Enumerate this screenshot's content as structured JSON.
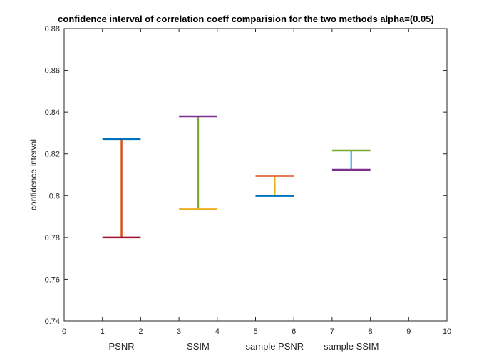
{
  "chart_data": {
    "type": "errorbar",
    "title": "confidence interval of correlation coeff comparision  for the two methods alpha=(0.05)",
    "xlabel": "",
    "ylabel": "confidence interval",
    "xlim": [
      0,
      10
    ],
    "ylim": [
      0.74,
      0.88
    ],
    "xticks": [
      "0",
      "1",
      "2",
      "3",
      "4",
      "5",
      "6",
      "7",
      "8",
      "9",
      "10"
    ],
    "yticks": [
      "0.74",
      "0.76",
      "0.78",
      "0.8",
      "0.82",
      "0.84",
      "0.86",
      "0.88"
    ],
    "grid": false,
    "group_labels": [
      {
        "text": "PSNR",
        "x": 1.5
      },
      {
        "text": "SSIM",
        "x": 3.5
      },
      {
        "text": "sample PSNR",
        "x": 5.5
      },
      {
        "text": "sample SSIM",
        "x": 7.5
      }
    ],
    "intervals": [
      {
        "name": "PSNR",
        "x": 1.5,
        "x_range": [
          1,
          2
        ],
        "lower": 0.78,
        "upper": 0.8271,
        "colors": {
          "upper": "#0072BD",
          "stem": "#D95319",
          "lower": "#A2142F"
        }
      },
      {
        "name": "SSIM",
        "x": 3.5,
        "x_range": [
          3,
          4
        ],
        "lower": 0.7935,
        "upper": 0.838,
        "colors": {
          "upper": "#7E2F8E",
          "stem": "#77AC30",
          "lower": "#EDB120"
        }
      },
      {
        "name": "sample PSNR",
        "x": 5.5,
        "x_range": [
          5,
          6
        ],
        "lower": 0.7999,
        "upper": 0.8095,
        "colors": {
          "upper": "#D95319",
          "stem": "#EDB120",
          "lower": "#0072BD"
        }
      },
      {
        "name": "sample SSIM",
        "x": 7.5,
        "x_range": [
          7,
          8
        ],
        "lower": 0.8124,
        "upper": 0.8216,
        "colors": {
          "upper": "#77AC30",
          "stem": "#4DBEEE",
          "lower": "#7E2F8E"
        }
      }
    ]
  }
}
